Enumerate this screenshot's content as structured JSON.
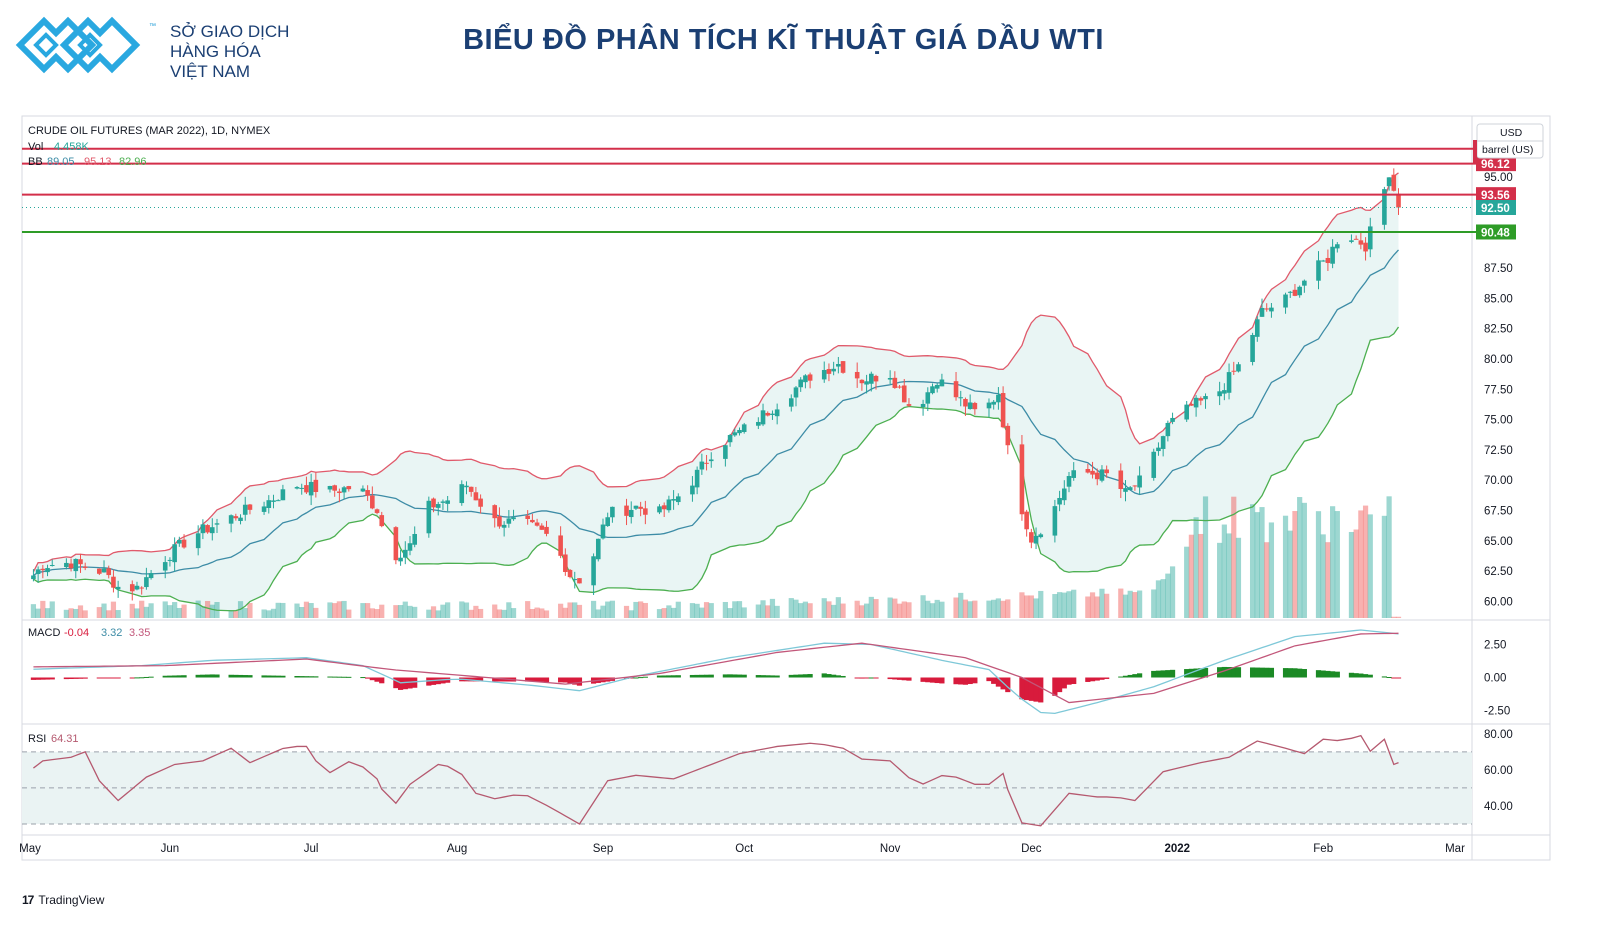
{
  "header": {
    "brand_lines": [
      "SỞ GIAO DỊCH",
      "HÀNG HÓA",
      "VIỆT NAM"
    ],
    "trademark": "™",
    "title": "BIỂU ĐỒ PHÂN TÍCH KĨ THUẬT GIÁ DẦU WTI"
  },
  "footer": {
    "brand_mark": "17",
    "brand": "TradingView"
  },
  "colors": {
    "up": "#26a69a",
    "down": "#ef5350",
    "resistance": "#d32f4a",
    "support": "#2e9c27",
    "bb_upper": "#e05a6b",
    "bb_basis": "#3d8ca6",
    "bb_lower": "#4caf50",
    "bb_fill": "#e9f5f4",
    "macd_line": "#7ec8d8",
    "signal_line": "#c2577a",
    "rsi_line": "#b5596f",
    "rsi_band": "#eaf3f3",
    "brand_blue": "#1b3f73",
    "logo_cyan": "#29a8e0"
  },
  "chart_data": [
    {
      "type": "candlestick",
      "title": "CRUDE OIL FUTURES (MAR 2022), 1D, NYMEX",
      "volume_label": "Vol",
      "volume_value": "4.458K",
      "bb_label": "BB",
      "bb_values": [
        "89.05",
        "95.13",
        "82.96"
      ],
      "currency": "USD",
      "unit": "barrel (US)",
      "y_ticks": [
        60.0,
        62.5,
        65.0,
        67.5,
        70.0,
        72.5,
        75.0,
        77.5,
        80.0,
        82.5,
        85.0,
        87.5,
        95.0
      ],
      "y_tick_labels": [
        "60.00",
        "62.50",
        "65.00",
        "67.50",
        "70.00",
        "72.50",
        "75.00",
        "77.50",
        "80.00",
        "82.50",
        "85.00",
        "87.50",
        "95.00"
      ],
      "ylim": [
        59.2,
        98.6
      ],
      "x_labels": [
        {
          "label": "May",
          "day": 0
        },
        {
          "label": "Jun",
          "day": 31
        },
        {
          "label": "Jul",
          "day": 61
        },
        {
          "label": "Aug",
          "day": 92
        },
        {
          "label": "Sep",
          "day": 123
        },
        {
          "label": "Oct",
          "day": 153
        },
        {
          "label": "Nov",
          "day": 184
        },
        {
          "label": "Dec",
          "day": 214
        },
        {
          "label": "2022",
          "day": 245
        },
        {
          "label": "Feb",
          "day": 276
        },
        {
          "label": "Mar",
          "day": 304
        }
      ],
      "horizontal_levels": [
        {
          "value": 97.35,
          "label": "",
          "kind": "resistance"
        },
        {
          "value": 96.12,
          "label": "96.12",
          "kind": "resistance"
        },
        {
          "value": 93.56,
          "label": "93.56",
          "kind": "resistance"
        },
        {
          "value": 92.5,
          "label": "92.50",
          "kind": "last"
        },
        {
          "value": 90.48,
          "label": "90.48",
          "kind": "support"
        }
      ],
      "anchors": [
        {
          "day": 0,
          "close": 61.3
        },
        {
          "day": 4,
          "close": 63.0
        },
        {
          "day": 10,
          "close": 63.2
        },
        {
          "day": 17,
          "close": 62.4
        },
        {
          "day": 20,
          "close": 61.2
        },
        {
          "day": 24,
          "close": 61.1
        },
        {
          "day": 30,
          "close": 63.6
        },
        {
          "day": 36,
          "close": 65.5
        },
        {
          "day": 45,
          "close": 67.1
        },
        {
          "day": 52,
          "close": 68.3
        },
        {
          "day": 58,
          "close": 69.6
        },
        {
          "day": 65,
          "close": 69.1
        },
        {
          "day": 71,
          "close": 69.5
        },
        {
          "day": 75,
          "close": 67.6
        },
        {
          "day": 78,
          "close": 63.6
        },
        {
          "day": 82,
          "close": 64.6
        },
        {
          "day": 86,
          "close": 67.8
        },
        {
          "day": 90,
          "close": 68.4
        },
        {
          "day": 94,
          "close": 69.6
        },
        {
          "day": 100,
          "close": 66.6
        },
        {
          "day": 106,
          "close": 66.5
        },
        {
          "day": 112,
          "close": 65.2
        },
        {
          "day": 116,
          "close": 62.2
        },
        {
          "day": 119,
          "close": 61.6
        },
        {
          "day": 124,
          "close": 67.2
        },
        {
          "day": 130,
          "close": 67.8
        },
        {
          "day": 135,
          "close": 67.3
        },
        {
          "day": 141,
          "close": 69.4
        },
        {
          "day": 147,
          "close": 72.8
        },
        {
          "day": 153,
          "close": 74.2
        },
        {
          "day": 160,
          "close": 76.3
        },
        {
          "day": 167,
          "close": 78.6
        },
        {
          "day": 173,
          "close": 79.6
        },
        {
          "day": 178,
          "close": 78.3
        },
        {
          "day": 184,
          "close": 78.8
        },
        {
          "day": 189,
          "close": 75.6
        },
        {
          "day": 194,
          "close": 78.4
        },
        {
          "day": 198,
          "close": 76.9
        },
        {
          "day": 203,
          "close": 75.3
        },
        {
          "day": 207,
          "close": 77.2
        },
        {
          "day": 210,
          "close": 70.1
        },
        {
          "day": 214,
          "close": 65.2
        },
        {
          "day": 218,
          "close": 66.9
        },
        {
          "day": 222,
          "close": 70.3
        },
        {
          "day": 226,
          "close": 70.6
        },
        {
          "day": 230,
          "close": 70.4
        },
        {
          "day": 234,
          "close": 68.9
        },
        {
          "day": 238,
          "close": 70.2
        },
        {
          "day": 243,
          "close": 74.5
        },
        {
          "day": 248,
          "close": 76.1
        },
        {
          "day": 253,
          "close": 76.9
        },
        {
          "day": 258,
          "close": 79.4
        },
        {
          "day": 263,
          "close": 83.9
        },
        {
          "day": 268,
          "close": 84.9
        },
        {
          "day": 273,
          "close": 86.9
        },
        {
          "day": 277,
          "close": 88.3
        },
        {
          "day": 280,
          "close": 90.6
        },
        {
          "day": 285,
          "close": 89.4
        },
        {
          "day": 288,
          "close": 92.5
        },
        {
          "day": 290,
          "close": 95.5
        },
        {
          "day": 292,
          "close": 92.5
        }
      ],
      "indicators": [
        {
          "type": "line",
          "name": "MACD",
          "values_label": [
            "-0.04",
            "3.32",
            "3.35"
          ],
          "y_ticks": [
            2.5,
            0.0,
            -2.5
          ],
          "y_tick_labels": [
            "2.50",
            "0.00",
            "-2.50"
          ],
          "ylim": [
            -3.5,
            4.1
          ],
          "macd_anchors": [
            {
              "day": 0,
              "value": 0.6
            },
            {
              "day": 25,
              "value": 0.9
            },
            {
              "day": 40,
              "value": 1.3
            },
            {
              "day": 60,
              "value": 1.5
            },
            {
              "day": 72,
              "value": 0.9
            },
            {
              "day": 80,
              "value": -0.4
            },
            {
              "day": 92,
              "value": -0.1
            },
            {
              "day": 108,
              "value": -0.6
            },
            {
              "day": 118,
              "value": -1.0
            },
            {
              "day": 130,
              "value": 0.1
            },
            {
              "day": 150,
              "value": 1.5
            },
            {
              "day": 170,
              "value": 2.6
            },
            {
              "day": 180,
              "value": 2.5
            },
            {
              "day": 195,
              "value": 1.3
            },
            {
              "day": 205,
              "value": 0.6
            },
            {
              "day": 211,
              "value": -1.4
            },
            {
              "day": 217,
              "value": -2.9
            },
            {
              "day": 228,
              "value": -1.9
            },
            {
              "day": 240,
              "value": -0.7
            },
            {
              "day": 255,
              "value": 1.3
            },
            {
              "day": 270,
              "value": 3.1
            },
            {
              "day": 284,
              "value": 3.6
            },
            {
              "day": 292,
              "value": 3.3
            }
          ],
          "signal_anchors": [
            {
              "day": 0,
              "value": 0.8
            },
            {
              "day": 30,
              "value": 0.9
            },
            {
              "day": 60,
              "value": 1.4
            },
            {
              "day": 78,
              "value": 0.6
            },
            {
              "day": 95,
              "value": 0.1
            },
            {
              "day": 115,
              "value": -0.5
            },
            {
              "day": 135,
              "value": 0.3
            },
            {
              "day": 160,
              "value": 1.9
            },
            {
              "day": 178,
              "value": 2.6
            },
            {
              "day": 200,
              "value": 1.5
            },
            {
              "day": 212,
              "value": 0.0
            },
            {
              "day": 222,
              "value": -1.9
            },
            {
              "day": 240,
              "value": -1.2
            },
            {
              "day": 255,
              "value": 0.5
            },
            {
              "day": 270,
              "value": 2.4
            },
            {
              "day": 284,
              "value": 3.3
            },
            {
              "day": 292,
              "value": 3.35
            }
          ]
        },
        {
          "type": "line",
          "name": "RSI",
          "value_label": "64.31",
          "y_ticks": [
            80.0,
            60.0,
            40.0
          ],
          "y_tick_labels": [
            "80.00",
            "60.00",
            "40.00"
          ],
          "ylim": [
            24,
            84
          ],
          "bands": [
            70,
            50,
            30
          ],
          "anchors": [
            {
              "day": 0,
              "value": 57
            },
            {
              "day": 4,
              "value": 65
            },
            {
              "day": 10,
              "value": 67
            },
            {
              "day": 13,
              "value": 70
            },
            {
              "day": 16,
              "value": 54
            },
            {
              "day": 20,
              "value": 43
            },
            {
              "day": 26,
              "value": 56
            },
            {
              "day": 32,
              "value": 63
            },
            {
              "day": 38,
              "value": 65
            },
            {
              "day": 44,
              "value": 72
            },
            {
              "day": 48,
              "value": 64
            },
            {
              "day": 56,
              "value": 73
            },
            {
              "day": 60,
              "value": 73
            },
            {
              "day": 64,
              "value": 57
            },
            {
              "day": 70,
              "value": 66
            },
            {
              "day": 75,
              "value": 55
            },
            {
              "day": 78,
              "value": 38
            },
            {
              "day": 82,
              "value": 52
            },
            {
              "day": 88,
              "value": 63
            },
            {
              "day": 92,
              "value": 61
            },
            {
              "day": 96,
              "value": 47
            },
            {
              "day": 100,
              "value": 44
            },
            {
              "day": 106,
              "value": 47
            },
            {
              "day": 112,
              "value": 39
            },
            {
              "day": 118,
              "value": 30
            },
            {
              "day": 124,
              "value": 54
            },
            {
              "day": 130,
              "value": 57
            },
            {
              "day": 138,
              "value": 55
            },
            {
              "day": 146,
              "value": 63
            },
            {
              "day": 152,
              "value": 69
            },
            {
              "day": 160,
              "value": 73
            },
            {
              "day": 168,
              "value": 75
            },
            {
              "day": 174,
              "value": 72
            },
            {
              "day": 178,
              "value": 66
            },
            {
              "day": 184,
              "value": 65
            },
            {
              "day": 190,
              "value": 51
            },
            {
              "day": 196,
              "value": 58
            },
            {
              "day": 204,
              "value": 50
            },
            {
              "day": 208,
              "value": 58
            },
            {
              "day": 211,
              "value": 31
            },
            {
              "day": 216,
              "value": 29
            },
            {
              "day": 222,
              "value": 47
            },
            {
              "day": 228,
              "value": 45
            },
            {
              "day": 232,
              "value": 45
            },
            {
              "day": 236,
              "value": 43
            },
            {
              "day": 242,
              "value": 59
            },
            {
              "day": 250,
              "value": 64
            },
            {
              "day": 256,
              "value": 67
            },
            {
              "day": 262,
              "value": 76
            },
            {
              "day": 268,
              "value": 72
            },
            {
              "day": 272,
              "value": 69
            },
            {
              "day": 276,
              "value": 77
            },
            {
              "day": 280,
              "value": 76
            },
            {
              "day": 284,
              "value": 79
            },
            {
              "day": 287,
              "value": 66
            },
            {
              "day": 289,
              "value": 77
            },
            {
              "day": 291,
              "value": 63
            },
            {
              "day": 292,
              "value": 64
            }
          ]
        }
      ]
    }
  ]
}
